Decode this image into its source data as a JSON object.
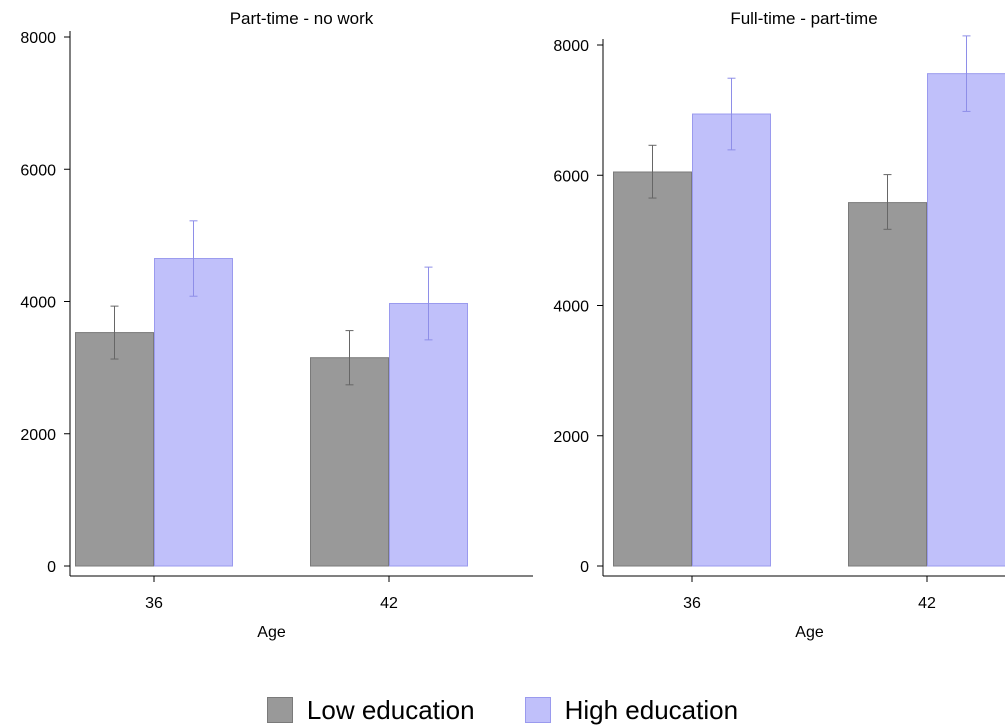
{
  "chart_data": [
    {
      "type": "bar",
      "title": "Part-time - no work",
      "xlabel": "Age",
      "ylabel": "",
      "categories": [
        "36",
        "42"
      ],
      "ylim": [
        0,
        8000
      ],
      "yticks": [
        "0",
        "2000",
        "4000",
        "6000",
        "8000"
      ],
      "series": [
        {
          "name": "Low education",
          "values": [
            3530,
            3150
          ],
          "err_low": [
            3130,
            2740
          ],
          "err_high": [
            3930,
            3560
          ]
        },
        {
          "name": "High education",
          "values": [
            4650,
            3970
          ],
          "err_low": [
            4080,
            3420
          ],
          "err_high": [
            5220,
            4520
          ]
        }
      ]
    },
    {
      "type": "bar",
      "title": "Full-time - part-time",
      "xlabel": "Age",
      "ylabel": "",
      "categories": [
        "36",
        "42"
      ],
      "ylim": [
        0,
        8000
      ],
      "yticks": [
        "0",
        "2000",
        "4000",
        "6000",
        "8000"
      ],
      "series": [
        {
          "name": "Low education",
          "values": [
            6050,
            5580
          ],
          "err_low": [
            5650,
            5170
          ],
          "err_high": [
            6460,
            6010
          ]
        },
        {
          "name": "High education",
          "values": [
            6940,
            7560
          ],
          "err_low": [
            6390,
            6980
          ],
          "err_high": [
            7490,
            8140
          ]
        }
      ]
    }
  ],
  "legend": {
    "items": [
      {
        "label": "Low education",
        "color": "#999999",
        "edge": "#7a7a7a"
      },
      {
        "label": "High education",
        "color": "#c0c0fa",
        "edge": "#9a9aee"
      }
    ]
  },
  "colors": {
    "low_error": "#666666",
    "high_error": "#8e8ee8"
  }
}
